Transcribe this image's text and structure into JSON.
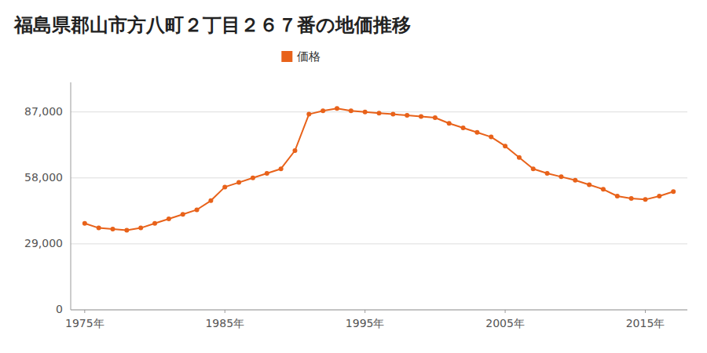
{
  "chart_data": {
    "type": "line",
    "title": "福島県郡山市方八町２丁目２６７番の地価推移",
    "x": [
      1975,
      1976,
      1977,
      1978,
      1979,
      1980,
      1981,
      1982,
      1983,
      1984,
      1985,
      1986,
      1987,
      1988,
      1989,
      1990,
      1991,
      1992,
      1993,
      1994,
      1995,
      1996,
      1997,
      1998,
      1999,
      2000,
      2001,
      2002,
      2003,
      2004,
      2005,
      2006,
      2007,
      2008,
      2009,
      2010,
      2011,
      2012,
      2013,
      2014,
      2015,
      2016,
      2017
    ],
    "series": [
      {
        "name": "価格",
        "color": "#E8621A",
        "marker": "circle",
        "values": [
          38000,
          36000,
          35500,
          35000,
          36000,
          38000,
          40000,
          42000,
          44000,
          48000,
          54000,
          56000,
          58000,
          60000,
          62000,
          70000,
          86000,
          87500,
          88500,
          87500,
          87000,
          86500,
          86000,
          85500,
          85000,
          84500,
          82000,
          80000,
          78000,
          76000,
          72000,
          67000,
          62000,
          60000,
          58500,
          57000,
          55000,
          53000,
          50000,
          49000,
          48500,
          50000,
          52000
        ]
      }
    ],
    "xlim": [
      1974,
      2018
    ],
    "xticks": [
      {
        "value": 1975,
        "label": "1975年"
      },
      {
        "value": 1985,
        "label": "1985年"
      },
      {
        "value": 1995,
        "label": "1995年"
      },
      {
        "value": 2005,
        "label": "2005年"
      },
      {
        "value": 2015,
        "label": "2015年"
      }
    ],
    "ylim": [
      0,
      100000
    ],
    "yticks": [
      0,
      {
        "value": 29000,
        "label": "29,000"
      },
      {
        "value": 58000,
        "label": "58,000"
      },
      {
        "value": 87000,
        "label": "87,000"
      }
    ],
    "grid": true,
    "legend": "top"
  }
}
